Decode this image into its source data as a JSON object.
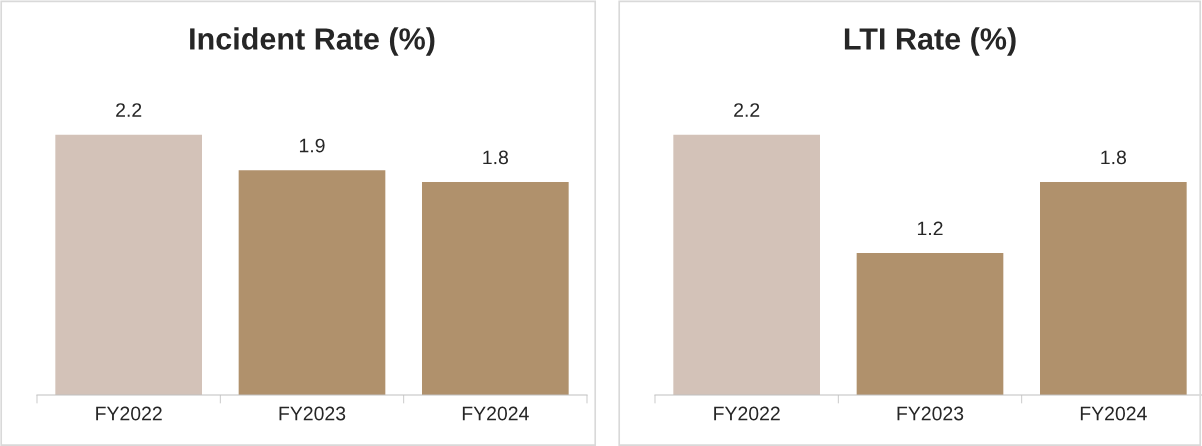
{
  "chart_data": [
    {
      "type": "bar",
      "title": "Incident Rate (%)",
      "categories": [
        "FY2022",
        "FY2023",
        "FY2024"
      ],
      "values": [
        2.2,
        1.9,
        1.8
      ],
      "colors": [
        "#d3c2b8",
        "#b0916c",
        "#b0916c"
      ],
      "data_labels": true,
      "grid": false
    },
    {
      "type": "bar",
      "title": "LTI Rate (%)",
      "categories": [
        "FY2022",
        "FY2023",
        "FY2024"
      ],
      "values": [
        2.2,
        1.2,
        1.8
      ],
      "colors": [
        "#d3c2b8",
        "#b0916c",
        "#b0916c"
      ],
      "data_labels": true,
      "grid": false
    }
  ]
}
